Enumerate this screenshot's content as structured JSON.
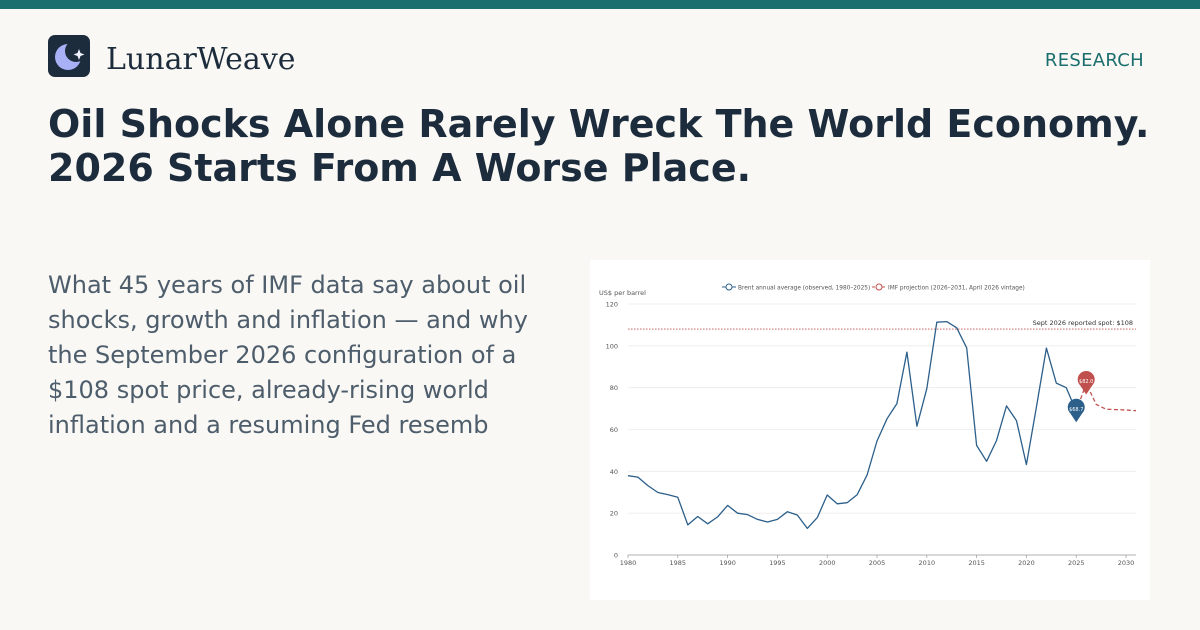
{
  "header": {
    "brand": "LunarWeave",
    "section_label": "RESEARCH"
  },
  "headline": {
    "line1": "Oil Shocks Alone Rarely Wreck The World Economy.",
    "line2": "2026 Starts From A Worse Place."
  },
  "dek": "What 45 years of IMF data say about oil shocks, growth and inflation — and why the September 2026 configuration of a $108 spot price, already-rising world inflation and a resuming Fed resemb",
  "colors": {
    "accent": "#1a6e6e",
    "observed": "#2c5f8a",
    "projection": "#c0504d",
    "reference": "#c0504d",
    "headline": "#1c2c3c"
  },
  "icons": {
    "logo": "moon-star-icon"
  },
  "chart_data": {
    "type": "line",
    "ylabel": "US$ per barrel",
    "xlim": [
      1980,
      2031
    ],
    "ylim": [
      0,
      120
    ],
    "x_ticks": [
      1980,
      1985,
      1990,
      1995,
      2000,
      2005,
      2010,
      2015,
      2020,
      2025,
      2030
    ],
    "y_ticks": [
      0,
      20,
      40,
      60,
      80,
      100,
      120
    ],
    "grid": "horizontal",
    "legend_position": "top-center",
    "series": [
      {
        "name": "Brent annual average (observed, 1980–2025)",
        "style": "solid",
        "points": [
          [
            1980,
            37.9
          ],
          [
            1981,
            37.2
          ],
          [
            1982,
            33.2
          ],
          [
            1983,
            29.9
          ],
          [
            1984,
            28.9
          ],
          [
            1985,
            27.6
          ],
          [
            1986,
            14.4
          ],
          [
            1987,
            18.4
          ],
          [
            1988,
            14.9
          ],
          [
            1989,
            18.2
          ],
          [
            1990,
            23.7
          ],
          [
            1991,
            20.0
          ],
          [
            1992,
            19.3
          ],
          [
            1993,
            17.0
          ],
          [
            1994,
            15.8
          ],
          [
            1995,
            17.0
          ],
          [
            1996,
            20.7
          ],
          [
            1997,
            19.1
          ],
          [
            1998,
            12.7
          ],
          [
            1999,
            17.9
          ],
          [
            2000,
            28.7
          ],
          [
            2001,
            24.5
          ],
          [
            2002,
            25.0
          ],
          [
            2003,
            28.8
          ],
          [
            2004,
            38.3
          ],
          [
            2005,
            54.5
          ],
          [
            2006,
            65.1
          ],
          [
            2007,
            72.4
          ],
          [
            2008,
            97.0
          ],
          [
            2009,
            61.6
          ],
          [
            2010,
            79.5
          ],
          [
            2011,
            111.3
          ],
          [
            2012,
            111.6
          ],
          [
            2013,
            108.6
          ],
          [
            2014,
            99.0
          ],
          [
            2015,
            52.4
          ],
          [
            2016,
            44.8
          ],
          [
            2017,
            54.7
          ],
          [
            2018,
            71.3
          ],
          [
            2019,
            64.2
          ],
          [
            2020,
            43.2
          ],
          [
            2021,
            70.7
          ],
          [
            2022,
            98.9
          ],
          [
            2023,
            82.2
          ],
          [
            2024,
            80.0
          ],
          [
            2025,
            68.7
          ]
        ]
      },
      {
        "name": "IMF projection (2026–2031, April 2026 vintage)",
        "style": "dashed",
        "points": [
          [
            2025,
            68.7
          ],
          [
            2026,
            82.0
          ],
          [
            2027,
            72.0
          ],
          [
            2028,
            69.7
          ],
          [
            2029,
            69.5
          ],
          [
            2030,
            69.3
          ],
          [
            2031,
            69.0
          ]
        ]
      }
    ],
    "reference_line": {
      "value": 108,
      "label": "Sept 2026 reported spot: $108"
    },
    "markers": [
      {
        "x": 2025,
        "y": 68.7,
        "label": "$68.7",
        "series": 0
      },
      {
        "x": 2026,
        "y": 82.0,
        "label": "$82.0",
        "series": 1
      }
    ]
  }
}
